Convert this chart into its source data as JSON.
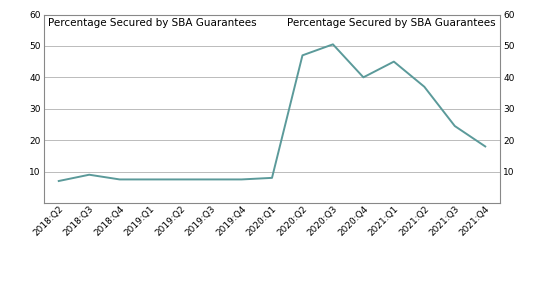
{
  "x_labels": [
    "2018:Q2",
    "2018:Q3",
    "2018:Q4",
    "2019:Q1",
    "2019:Q2",
    "2019:Q3",
    "2019:Q4",
    "2020:Q1",
    "2020:Q2",
    "2020:Q3",
    "2020:Q4",
    "2021:Q1",
    "2021:Q2",
    "2021:Q3",
    "2021:Q4"
  ],
  "y_values": [
    7.0,
    9.0,
    7.5,
    7.5,
    7.5,
    7.5,
    7.5,
    8.0,
    47.0,
    50.5,
    40.0,
    45.0,
    37.0,
    24.5,
    18.0
  ],
  "line_color": "#5B9A9A",
  "line_width": 1.4,
  "title_left": "Percentage Secured by SBA Guarantees",
  "title_right": "Percentage Secured by SBA Guarantees",
  "ylim": [
    0,
    60
  ],
  "yticks": [
    10,
    20,
    30,
    40,
    50,
    60
  ],
  "background_color": "#ffffff",
  "grid_color": "#bbbbbb",
  "title_fontsize": 7.5,
  "tick_fontsize": 6.5
}
